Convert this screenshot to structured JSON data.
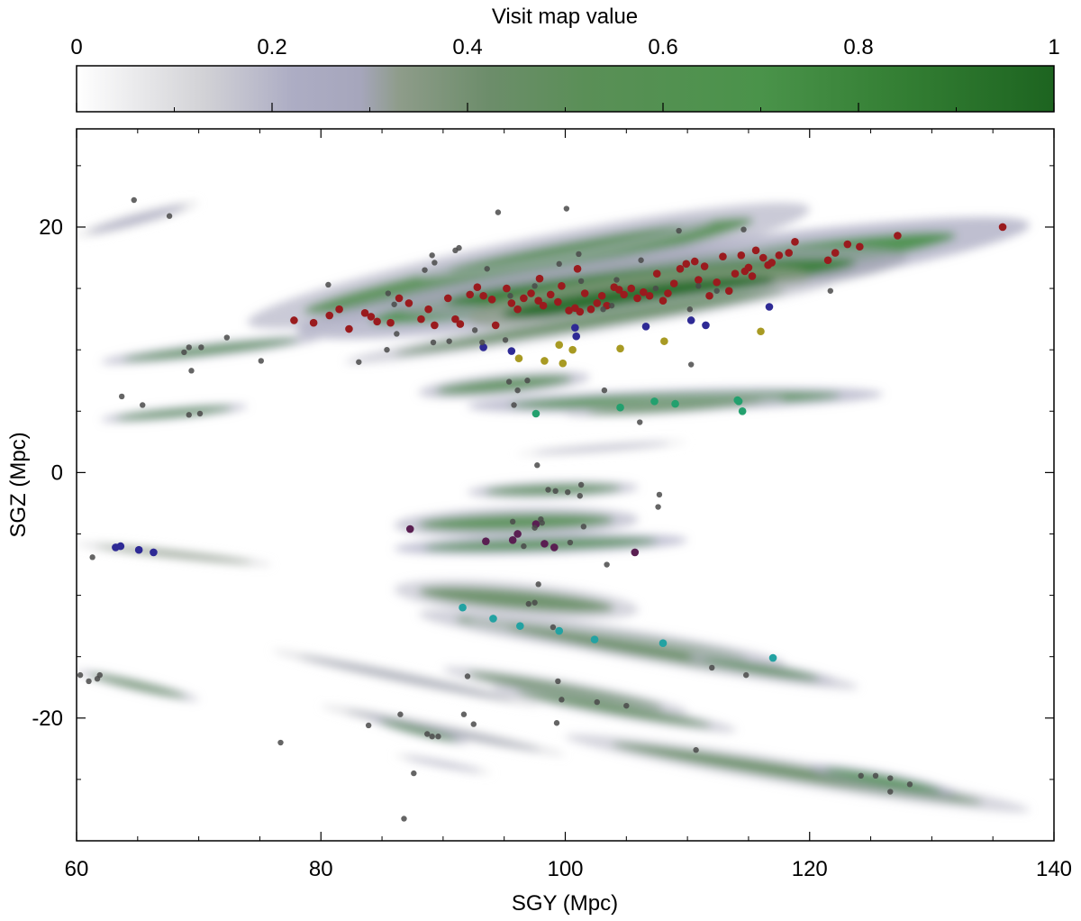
{
  "chart_data": {
    "type": "scatter",
    "colorbar": {
      "title": "Visit map value",
      "range": [
        0,
        1
      ],
      "ticks": [
        0,
        0.2,
        0.4,
        0.6,
        0.8,
        1
      ],
      "tick_labels": [
        "0",
        "0.2",
        "0.4",
        "0.6",
        "0.8",
        "1"
      ],
      "colormap": [
        {
          "v": 0.0,
          "color": "#ffffff"
        },
        {
          "v": 0.13,
          "color": "#d2d2d6"
        },
        {
          "v": 0.22,
          "color": "#adadc4"
        },
        {
          "v": 0.29,
          "color": "#a6a6bc"
        },
        {
          "v": 0.33,
          "color": "#8e9c8a"
        },
        {
          "v": 0.42,
          "color": "#6d8d6b"
        },
        {
          "v": 0.52,
          "color": "#5a8f57"
        },
        {
          "v": 0.7,
          "color": "#4a934a"
        },
        {
          "v": 0.84,
          "color": "#347f34"
        },
        {
          "v": 1.0,
          "color": "#1d6420"
        }
      ]
    },
    "xlabel": "SGY (Mpc)",
    "ylabel": "SGZ (Mpc)",
    "xlim": [
      60,
      140
    ],
    "ylim": [
      -30,
      28
    ],
    "xticks": [
      60,
      80,
      100,
      120,
      140
    ],
    "xtick_labels": [
      "60",
      "80",
      "100",
      "120",
      "140"
    ],
    "yticks": [
      -20,
      0,
      20
    ],
    "ytick_labels": [
      "-20",
      "0",
      "20"
    ],
    "grid": false,
    "streaks": [
      {
        "x1": 60,
        "y1": 19.3,
        "x2": 70,
        "y2": 22,
        "w": 0.6,
        "v": 0.25
      },
      {
        "x1": 74,
        "y1": 12.2,
        "x2": 120,
        "y2": 21.5,
        "w": 2.2,
        "v": 0.55
      },
      {
        "x1": 78,
        "y1": 11.5,
        "x2": 138,
        "y2": 20.2,
        "w": 2.4,
        "v": 0.72
      },
      {
        "x1": 86,
        "y1": 13.5,
        "x2": 128,
        "y2": 17.5,
        "w": 2.0,
        "v": 0.85
      },
      {
        "x1": 92,
        "y1": 12.5,
        "x2": 120,
        "y2": 16,
        "w": 1.8,
        "v": 0.95
      },
      {
        "x1": 82,
        "y1": 9.0,
        "x2": 122,
        "y2": 15.5,
        "w": 0.9,
        "v": 0.45
      },
      {
        "x1": 88,
        "y1": 16.0,
        "x2": 112,
        "y2": 20.5,
        "w": 0.8,
        "v": 0.55
      },
      {
        "x1": 62,
        "y1": 9.0,
        "x2": 80,
        "y2": 11.0,
        "w": 0.6,
        "v": 0.6
      },
      {
        "x1": 62,
        "y1": 4.3,
        "x2": 74,
        "y2": 5.4,
        "w": 0.5,
        "v": 0.6
      },
      {
        "x1": 88,
        "y1": 6.5,
        "x2": 102,
        "y2": 7.8,
        "w": 0.9,
        "v": 0.55
      },
      {
        "x1": 92,
        "y1": 5.4,
        "x2": 126,
        "y2": 6.4,
        "w": 0.9,
        "v": 0.65
      },
      {
        "x1": 100,
        "y1": 4.8,
        "x2": 118,
        "y2": 6.0,
        "w": 0.6,
        "v": 0.5
      },
      {
        "x1": 96,
        "y1": 1.5,
        "x2": 110,
        "y2": 2.5,
        "w": 0.4,
        "v": 0.18
      },
      {
        "x1": 92,
        "y1": -1.6,
        "x2": 106,
        "y2": -1.2,
        "w": 0.7,
        "v": 0.55
      },
      {
        "x1": 86,
        "y1": -4.3,
        "x2": 106,
        "y2": -3.8,
        "w": 1.2,
        "v": 0.55
      },
      {
        "x1": 86,
        "y1": -6.2,
        "x2": 110,
        "y2": -5.5,
        "w": 0.8,
        "v": 0.62
      },
      {
        "x1": 60,
        "y1": -5.8,
        "x2": 76,
        "y2": -7.5,
        "w": 0.4,
        "v": 0.35
      },
      {
        "x1": 86,
        "y1": -9.5,
        "x2": 106,
        "y2": -11.2,
        "w": 1.4,
        "v": 0.45
      },
      {
        "x1": 88,
        "y1": -11.5,
        "x2": 118,
        "y2": -15.6,
        "w": 1.1,
        "v": 0.5
      },
      {
        "x1": 92,
        "y1": -12.0,
        "x2": 124,
        "y2": -17.5,
        "w": 0.9,
        "v": 0.45
      },
      {
        "x1": 110,
        "y1": -15.0,
        "x2": 122,
        "y2": -17.0,
        "w": 0.6,
        "v": 0.55
      },
      {
        "x1": 76,
        "y1": -14.5,
        "x2": 98,
        "y2": -19.0,
        "w": 0.5,
        "v": 0.3
      },
      {
        "x1": 90,
        "y1": -16.0,
        "x2": 110,
        "y2": -19.5,
        "w": 0.8,
        "v": 0.45
      },
      {
        "x1": 94,
        "y1": -17.5,
        "x2": 114,
        "y2": -21.0,
        "w": 0.7,
        "v": 0.5
      },
      {
        "x1": 80,
        "y1": -19.0,
        "x2": 100,
        "y2": -23.0,
        "w": 0.5,
        "v": 0.3
      },
      {
        "x1": 84,
        "y1": -20.0,
        "x2": 92,
        "y2": -22.0,
        "w": 0.5,
        "v": 0.55
      },
      {
        "x1": 100,
        "y1": -21.5,
        "x2": 138,
        "y2": -27.5,
        "w": 1.0,
        "v": 0.45
      },
      {
        "x1": 120,
        "y1": -24.0,
        "x2": 132,
        "y2": -26.2,
        "w": 0.7,
        "v": 0.7
      },
      {
        "x1": 60,
        "y1": -16.2,
        "x2": 70,
        "y2": -18.5,
        "w": 0.5,
        "v": 0.5
      },
      {
        "x1": 86,
        "y1": -23.0,
        "x2": 94,
        "y2": -24.5,
        "w": 0.3,
        "v": 0.25
      }
    ],
    "series": [
      {
        "color": "#9a1b1e",
        "points": [
          [
            77.8,
            12.4
          ],
          [
            79.4,
            12.2
          ],
          [
            80.7,
            12.8
          ],
          [
            81.5,
            13.3
          ],
          [
            82.3,
            11.7
          ],
          [
            83.6,
            13.0
          ],
          [
            84.1,
            12.7
          ],
          [
            84.6,
            12.3
          ],
          [
            85.7,
            12.2
          ],
          [
            86.4,
            14.2
          ],
          [
            87.2,
            13.8
          ],
          [
            88.2,
            12.5
          ],
          [
            88.8,
            13.3
          ],
          [
            89.3,
            12.0
          ],
          [
            90.4,
            14.2
          ],
          [
            91.0,
            12.5
          ],
          [
            91.4,
            12.1
          ],
          [
            92.2,
            14.5
          ],
          [
            92.8,
            15.1
          ],
          [
            93.3,
            14.4
          ],
          [
            94.0,
            14.1
          ],
          [
            94.3,
            12.0
          ],
          [
            95.2,
            15.0
          ],
          [
            95.6,
            13.8
          ],
          [
            96.1,
            13.3
          ],
          [
            96.6,
            14.2
          ],
          [
            97.2,
            14.6
          ],
          [
            97.8,
            14.0
          ],
          [
            98.2,
            13.6
          ],
          [
            98.8,
            14.5
          ],
          [
            99.4,
            13.9
          ],
          [
            100.3,
            13.2
          ],
          [
            100.8,
            13.4
          ],
          [
            101.2,
            13.1
          ],
          [
            101.6,
            14.6
          ],
          [
            102.1,
            13.3
          ],
          [
            102.6,
            13.8
          ],
          [
            103.0,
            14.4
          ],
          [
            103.4,
            13.6
          ],
          [
            104.0,
            15.1
          ],
          [
            104.4,
            14.9
          ],
          [
            104.8,
            14.5
          ],
          [
            105.4,
            15.0
          ],
          [
            105.9,
            14.2
          ],
          [
            106.4,
            14.7
          ],
          [
            106.9,
            14.4
          ],
          [
            107.5,
            16.2
          ],
          [
            108.0,
            14.0
          ],
          [
            108.4,
            14.6
          ],
          [
            108.9,
            15.4
          ],
          [
            109.4,
            16.6
          ],
          [
            109.9,
            17.0
          ],
          [
            110.6,
            17.2
          ],
          [
            110.9,
            15.7
          ],
          [
            111.4,
            16.8
          ],
          [
            111.8,
            14.4
          ],
          [
            112.4,
            15.5
          ],
          [
            112.9,
            17.6
          ],
          [
            113.4,
            14.8
          ],
          [
            113.9,
            16.2
          ],
          [
            114.4,
            17.7
          ],
          [
            114.7,
            16.4
          ],
          [
            115.0,
            16.7
          ],
          [
            115.3,
            16.0
          ],
          [
            115.6,
            18.1
          ],
          [
            116.2,
            17.5
          ],
          [
            116.6,
            16.9
          ],
          [
            116.9,
            17.1
          ],
          [
            117.5,
            17.7
          ],
          [
            118.3,
            17.9
          ],
          [
            118.8,
            18.8
          ],
          [
            121.5,
            17.3
          ],
          [
            122.1,
            17.9
          ],
          [
            123.1,
            18.6
          ],
          [
            124.1,
            18.4
          ],
          [
            127.2,
            19.3
          ],
          [
            135.8,
            20.0
          ],
          [
            101.0,
            16.6
          ],
          [
            99.7,
            15.2
          ],
          [
            97.9,
            15.8
          ]
        ]
      },
      {
        "color": "#2e2a95",
        "points": [
          [
            93.3,
            10.2
          ],
          [
            95.6,
            9.9
          ],
          [
            100.8,
            11.8
          ],
          [
            100.9,
            11.1
          ],
          [
            106.6,
            11.9
          ],
          [
            110.3,
            12.4
          ],
          [
            111.5,
            12.0
          ],
          [
            116.7,
            13.5
          ],
          [
            63.2,
            -6.1
          ],
          [
            63.6,
            -6.0
          ],
          [
            65.1,
            -6.3
          ],
          [
            66.3,
            -6.5
          ]
        ]
      },
      {
        "color": "#a89a23",
        "points": [
          [
            96.2,
            9.3
          ],
          [
            98.3,
            9.1
          ],
          [
            99.5,
            10.4
          ],
          [
            99.8,
            8.9
          ],
          [
            100.6,
            10.0
          ],
          [
            104.5,
            10.1
          ],
          [
            108.1,
            10.7
          ],
          [
            116.0,
            11.5
          ]
        ]
      },
      {
        "color": "#23a06e",
        "points": [
          [
            97.6,
            4.8
          ],
          [
            104.5,
            5.3
          ],
          [
            107.3,
            5.8
          ],
          [
            109.0,
            5.6
          ],
          [
            114.1,
            5.9
          ],
          [
            114.5,
            5.0
          ],
          [
            114.2,
            5.8
          ]
        ]
      },
      {
        "color": "#5a1f52",
        "points": [
          [
            87.3,
            -4.6
          ],
          [
            93.5,
            -5.6
          ],
          [
            95.7,
            -5.5
          ],
          [
            96.1,
            -5.0
          ],
          [
            97.6,
            -4.2
          ],
          [
            98.3,
            -5.8
          ],
          [
            99.1,
            -6.1
          ],
          [
            105.7,
            -6.5
          ]
        ]
      },
      {
        "color": "#23a2a2",
        "points": [
          [
            91.6,
            -11.0
          ],
          [
            94.1,
            -11.9
          ],
          [
            96.3,
            -12.5
          ],
          [
            99.5,
            -12.9
          ],
          [
            102.4,
            -13.6
          ],
          [
            108.0,
            -13.9
          ],
          [
            117.0,
            -15.1
          ]
        ]
      },
      {
        "color": "#4a4a4a",
        "points": [
          [
            64.7,
            22.2
          ],
          [
            67.6,
            20.9
          ],
          [
            100.1,
            21.5
          ],
          [
            94.5,
            21.2
          ],
          [
            80.6,
            15.3
          ],
          [
            85.5,
            14.6
          ],
          [
            86.0,
            13.7
          ],
          [
            86.2,
            11.3
          ],
          [
            89.1,
            17.7
          ],
          [
            89.3,
            17.1
          ],
          [
            88.5,
            16.5
          ],
          [
            91.0,
            18.1
          ],
          [
            91.3,
            18.3
          ],
          [
            93.6,
            16.6
          ],
          [
            93.2,
            10.6
          ],
          [
            92.6,
            11.6
          ],
          [
            90.5,
            10.7
          ],
          [
            89.2,
            10.6
          ],
          [
            95.1,
            10.8
          ],
          [
            95.5,
            14.4
          ],
          [
            97.5,
            15.2
          ],
          [
            99.5,
            17.0
          ],
          [
            101.1,
            17.8
          ],
          [
            101.3,
            15.6
          ],
          [
            103.1,
            13.3
          ],
          [
            103.8,
            13.6
          ],
          [
            104.2,
            15.7
          ],
          [
            106.2,
            17.3
          ],
          [
            107.4,
            15.0
          ],
          [
            109.3,
            19.7
          ],
          [
            110.2,
            13.3
          ],
          [
            110.3,
            8.8
          ],
          [
            110.9,
            15.2
          ],
          [
            112.4,
            14.8
          ],
          [
            114.6,
            19.8
          ],
          [
            121.7,
            14.8
          ],
          [
            75.1,
            9.1
          ],
          [
            72.3,
            11.0
          ],
          [
            69.2,
            10.2
          ],
          [
            70.2,
            10.2
          ],
          [
            68.8,
            9.8
          ],
          [
            69.4,
            8.3
          ],
          [
            69.2,
            4.7
          ],
          [
            70.1,
            4.8
          ],
          [
            65.4,
            5.5
          ],
          [
            63.7,
            6.2
          ],
          [
            83.1,
            9.0
          ],
          [
            85.4,
            10.0
          ],
          [
            95.4,
            7.4
          ],
          [
            96.1,
            6.7
          ],
          [
            95.8,
            5.5
          ],
          [
            96.9,
            7.5
          ],
          [
            103.2,
            6.7
          ],
          [
            106.1,
            4.1
          ],
          [
            97.7,
            0.6
          ],
          [
            98.6,
            -1.4
          ],
          [
            99.2,
            -1.5
          ],
          [
            100.2,
            -1.6
          ],
          [
            101.3,
            -1.0
          ],
          [
            107.7,
            -1.8
          ],
          [
            107.6,
            -2.8
          ],
          [
            101.2,
            -1.9
          ],
          [
            98.0,
            -3.8
          ],
          [
            97.5,
            -4.5
          ],
          [
            98.1,
            -4.1
          ],
          [
            95.7,
            -4.0
          ],
          [
            96.6,
            -6.0
          ],
          [
            100.4,
            -5.7
          ],
          [
            101.5,
            -4.4
          ],
          [
            103.4,
            -7.5
          ],
          [
            61.3,
            -6.9
          ],
          [
            97.8,
            -9.1
          ],
          [
            97.5,
            -10.6
          ],
          [
            97.0,
            -10.7
          ],
          [
            99.0,
            -12.6
          ],
          [
            112.0,
            -15.9
          ],
          [
            114.8,
            -16.5
          ],
          [
            92.0,
            -16.6
          ],
          [
            99.4,
            -17.0
          ],
          [
            99.7,
            -18.5
          ],
          [
            102.6,
            -18.7
          ],
          [
            105.0,
            -19.0
          ],
          [
            91.7,
            -19.7
          ],
          [
            92.5,
            -20.5
          ],
          [
            99.3,
            -20.4
          ],
          [
            83.9,
            -20.6
          ],
          [
            86.5,
            -19.7
          ],
          [
            88.7,
            -21.3
          ],
          [
            89.1,
            -21.5
          ],
          [
            89.6,
            -21.5
          ],
          [
            110.7,
            -22.6
          ],
          [
            76.7,
            -22.0
          ],
          [
            87.6,
            -24.5
          ],
          [
            86.8,
            -28.2
          ],
          [
            60.3,
            -16.5
          ],
          [
            61.0,
            -17.0
          ],
          [
            61.7,
            -16.8
          ],
          [
            61.9,
            -16.5
          ],
          [
            124.2,
            -24.7
          ],
          [
            125.4,
            -24.7
          ],
          [
            126.6,
            -24.9
          ],
          [
            126.6,
            -26.0
          ],
          [
            128.2,
            -25.4
          ]
        ]
      }
    ]
  }
}
